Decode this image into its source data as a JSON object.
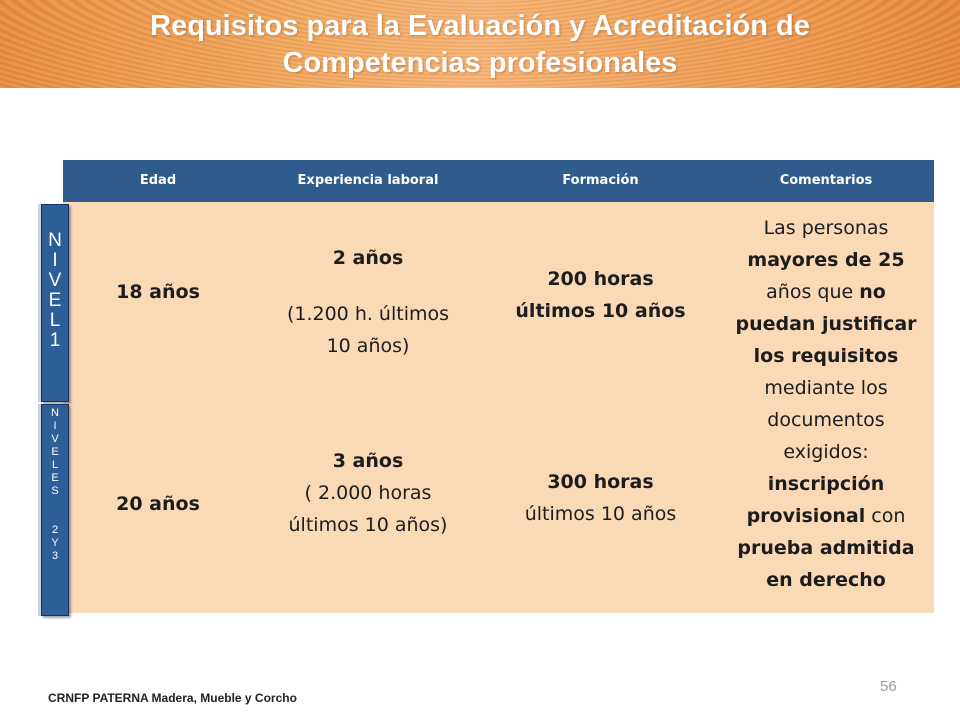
{
  "header": {
    "title_line1": "Requisitos para la Evaluación y Acreditación de",
    "title_line2": "Competencias profesionales"
  },
  "table": {
    "columns": [
      "Edad",
      "Experiencia laboral",
      "Formación",
      "Comentarios"
    ],
    "level1_label": [
      "N",
      "I",
      "V",
      "E",
      "L",
      "1"
    ],
    "level2_label": [
      "N",
      "I",
      "V",
      "E",
      "L",
      "E",
      "S",
      " ",
      "2",
      "Y",
      "3"
    ],
    "row1": {
      "edad": "18 años",
      "exp_main": "2 años",
      "exp_detail_1": "(1.200 h. últimos",
      "exp_detail_2": "10 años)",
      "form_1": "200 horas",
      "form_2": "últimos 10 años"
    },
    "row2": {
      "edad": "20 años",
      "exp_main": "3 años",
      "exp_detail_1": "( 2.000 horas",
      "exp_detail_2": "últimos 10 años)",
      "form_1": "300 horas",
      "form_2": "últimos 10 años"
    },
    "comment": {
      "l1": "Las personas",
      "l2": "mayores de 25",
      "l3a": "años que ",
      "l3b": "no",
      "l4": "puedan justificar",
      "l5": "los requisitos",
      "l6": "mediante los",
      "l7": "documentos",
      "l8": "exigidos:",
      "l9": "inscripción",
      "l10a": "provisional",
      "l10b": " con",
      "l11": "prueba admitida",
      "l12": "en derecho"
    }
  },
  "footer": {
    "org": "CRNFP PATERNA Madera, Mueble y Corcho",
    "page": "56"
  }
}
